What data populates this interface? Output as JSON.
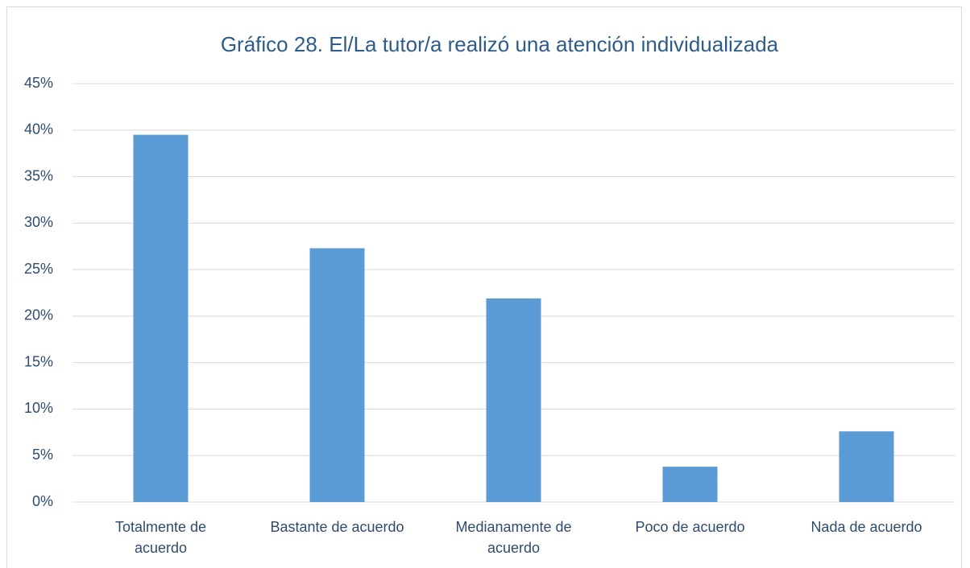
{
  "chart_data": {
    "type": "bar",
    "title": "Gráfico 28. El/La tutor/a realizó una atención individualizada",
    "categories": [
      "Totalmente de\nacuerdo",
      "Bastante de acuerdo",
      "Medianamente de\nacuerdo",
      "Poco de acuerdo",
      "Nada de acuerdo"
    ],
    "values": [
      39.5,
      27.3,
      21.9,
      3.8,
      7.6
    ],
    "color": "#5b9bd5",
    "ylim": [
      0,
      45
    ],
    "yticks": [
      {
        "value": 0,
        "label": "0%"
      },
      {
        "value": 5,
        "label": "5%"
      },
      {
        "value": 10,
        "label": "10%"
      },
      {
        "value": 15,
        "label": "15%"
      },
      {
        "value": 20,
        "label": "20%"
      },
      {
        "value": 25,
        "label": "25%"
      },
      {
        "value": 30,
        "label": "30%"
      },
      {
        "value": 35,
        "label": "35%"
      },
      {
        "value": 40,
        "label": "40%"
      },
      {
        "value": 45,
        "label": "45%"
      }
    ],
    "grid": true
  }
}
